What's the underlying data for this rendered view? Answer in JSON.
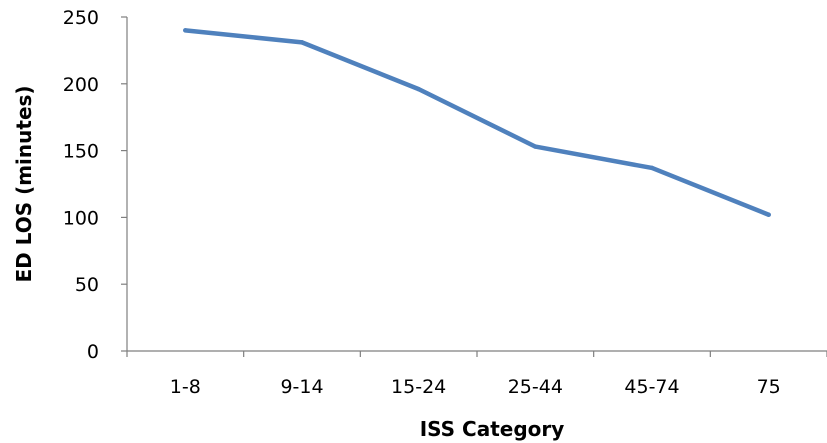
{
  "chart_data": {
    "type": "line",
    "categories": [
      "1-8",
      "9-14",
      "15-24",
      "25-44",
      "45-74",
      "75"
    ],
    "series": [
      {
        "values": [
          240,
          231,
          196,
          153,
          137,
          102
        ],
        "color": "#4f81bd"
      }
    ],
    "xlabel": "ISS Category",
    "ylabel": "ED LOS (minutes)",
    "ylim": [
      0,
      250
    ],
    "yticks": [
      0,
      50,
      100,
      150,
      200,
      250
    ],
    "grid": false,
    "legend": false
  }
}
